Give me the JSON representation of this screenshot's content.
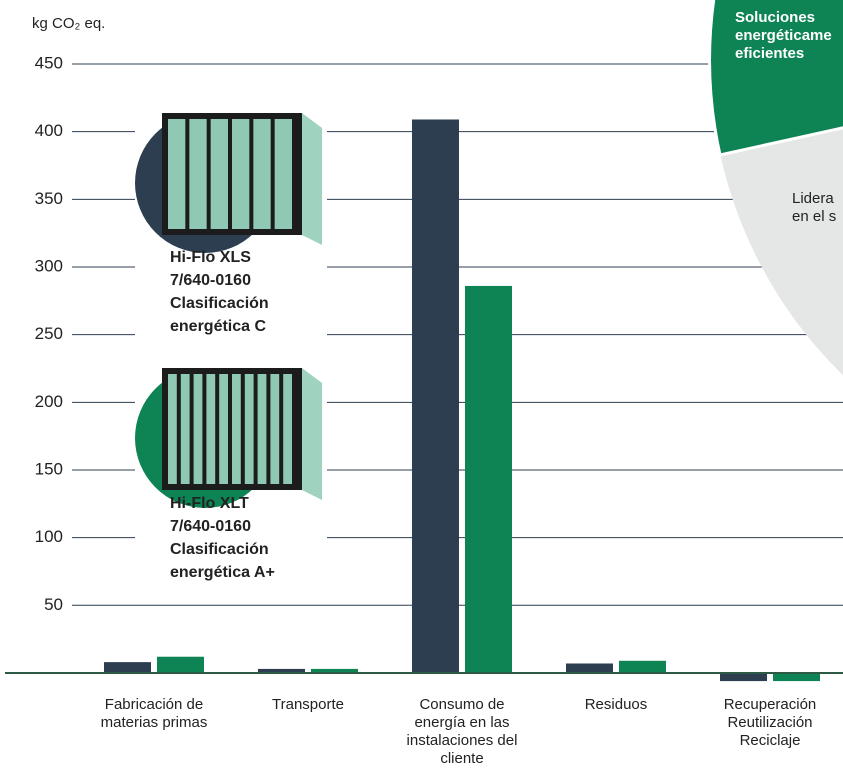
{
  "chart_data": {
    "type": "bar",
    "y_label": "kg CO₂ eq.",
    "categories": [
      "Fabricación de materias primas",
      "Transporte",
      "Consumo de energía en las instalaciones del cliente",
      "Residuos",
      "Recuperación Reutilización Reciclaje"
    ],
    "series": [
      {
        "name": "Hi-Flo XLS 7/640-0160 Clasificación energética C",
        "color": "#2c3e4f",
        "values": [
          8,
          3,
          409,
          7,
          -6
        ]
      },
      {
        "name": "Hi-Flo XLT 7/640-0160 Clasificación energética A+",
        "color": "#0e8454",
        "values": [
          12,
          3,
          286,
          9,
          -6
        ]
      }
    ],
    "ylim": [
      -10,
      450
    ],
    "yticks": [
      50,
      100,
      150,
      200,
      250,
      300,
      350,
      400,
      450
    ],
    "grid": true
  },
  "overlay": {
    "wedge_1": [
      "Soluciones",
      "energéticame",
      "eficientes"
    ],
    "wedge_2": [
      "Lidera",
      "en el s"
    ]
  }
}
